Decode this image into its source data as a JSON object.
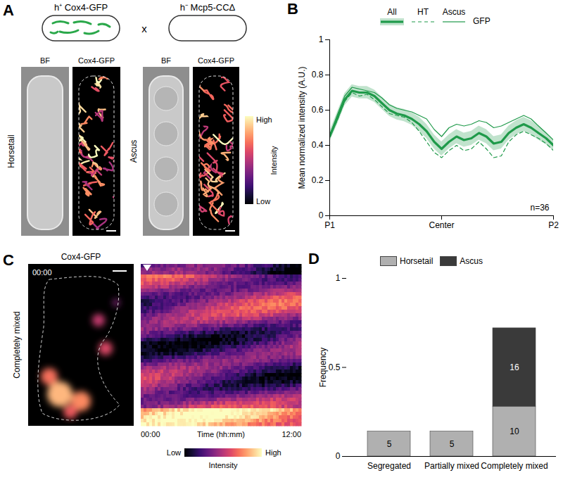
{
  "figure": {
    "panel_a": {
      "label": "A",
      "cross": {
        "strain1": "h⁺ Cox4-GFP",
        "operator": "x",
        "strain2": "h⁻ Mcp5-CCΔ"
      },
      "groups": [
        {
          "name": "Horsetail",
          "channels": [
            "BF",
            "Cox4-GFP"
          ]
        },
        {
          "name": "Ascus",
          "channels": [
            "BF",
            "Cox4-GFP"
          ]
        }
      ],
      "colorbar": {
        "title": "Intensity",
        "high": "High",
        "low": "Low"
      }
    },
    "panel_c": {
      "label": "C",
      "title": "Cox4-GFP",
      "row_label": "Completely mixed",
      "timestamp": "00:00",
      "x_label": "Time (hh:mm)",
      "x_start": "00:00",
      "x_end": "12:00",
      "colorbar": {
        "title": "Intensity",
        "low": "Low",
        "high": "High"
      }
    }
  },
  "chart_data": [
    {
      "panel": "B",
      "type": "line",
      "x": [
        0,
        0.033,
        0.067,
        0.1,
        0.133,
        0.167,
        0.2,
        0.233,
        0.267,
        0.3,
        0.333,
        0.367,
        0.4,
        0.433,
        0.467,
        0.5,
        0.533,
        0.567,
        0.6,
        0.633,
        0.667,
        0.7,
        0.733,
        0.767,
        0.8,
        0.833,
        0.867,
        0.9,
        0.933,
        0.967,
        1
      ],
      "xlim": [
        0,
        1
      ],
      "xticks": [
        {
          "value": 0,
          "label": "P1"
        },
        {
          "value": 0.5,
          "label": "Center"
        },
        {
          "value": 1,
          "label": "P2"
        }
      ],
      "ylim": [
        0,
        1
      ],
      "yticks": [
        0,
        0.2,
        0.4,
        0.6,
        0.8,
        1
      ],
      "y_label": "Mean normalized intensity (A.U.)",
      "legend": "top",
      "legend_title": "GFP",
      "annotations": [
        "n=36"
      ],
      "series": [
        {
          "name": "All",
          "color": "#1f9a4a",
          "line_style": "solid",
          "values": [
            0.45,
            0.55,
            0.66,
            0.71,
            0.7,
            0.7,
            0.68,
            0.64,
            0.6,
            0.58,
            0.57,
            0.55,
            0.52,
            0.48,
            0.42,
            0.38,
            0.42,
            0.45,
            0.43,
            0.44,
            0.47,
            0.45,
            0.41,
            0.42,
            0.47,
            0.5,
            0.52,
            0.5,
            0.47,
            0.44,
            0.4
          ],
          "error": [
            0.03,
            0.035,
            0.035,
            0.035,
            0.035,
            0.035,
            0.035,
            0.035,
            0.035,
            0.035,
            0.035,
            0.035,
            0.04,
            0.04,
            0.04,
            0.04,
            0.04,
            0.04,
            0.04,
            0.04,
            0.04,
            0.04,
            0.04,
            0.04,
            0.04,
            0.04,
            0.04,
            0.04,
            0.04,
            0.035,
            0.03
          ]
        },
        {
          "name": "HT",
          "color": "#1f9a4a",
          "line_style": "dashed",
          "values": [
            0.45,
            0.54,
            0.65,
            0.7,
            0.68,
            0.69,
            0.66,
            0.62,
            0.58,
            0.57,
            0.56,
            0.53,
            0.48,
            0.42,
            0.36,
            0.33,
            0.37,
            0.4,
            0.37,
            0.38,
            0.42,
            0.38,
            0.33,
            0.34,
            0.42,
            0.46,
            0.48,
            0.46,
            0.44,
            0.41,
            0.37
          ]
        },
        {
          "name": "Ascus",
          "color": "#1f9a4a",
          "line_style": "solid",
          "values": [
            0.46,
            0.57,
            0.68,
            0.73,
            0.72,
            0.71,
            0.7,
            0.67,
            0.63,
            0.61,
            0.6,
            0.59,
            0.57,
            0.55,
            0.49,
            0.45,
            0.5,
            0.52,
            0.51,
            0.52,
            0.54,
            0.53,
            0.5,
            0.51,
            0.53,
            0.55,
            0.57,
            0.55,
            0.51,
            0.47,
            0.43
          ]
        }
      ]
    },
    {
      "panel": "D",
      "type": "bar",
      "stacked": true,
      "categories": [
        "Segregated",
        "Partially mixed",
        "Completely mixed"
      ],
      "ylim": [
        0,
        1
      ],
      "yticks": [
        0,
        0.5,
        1
      ],
      "y_label": "Frequency",
      "legend": "top",
      "series": [
        {
          "name": "Horsetail",
          "color": "#b0b0b0",
          "values": [
            0.14,
            0.14,
            0.28
          ],
          "counts": [
            5,
            5,
            10
          ]
        },
        {
          "name": "Ascus",
          "color": "#3a3a3a",
          "values": [
            0,
            0,
            0.44
          ],
          "counts": [
            null,
            null,
            16
          ]
        }
      ]
    }
  ]
}
